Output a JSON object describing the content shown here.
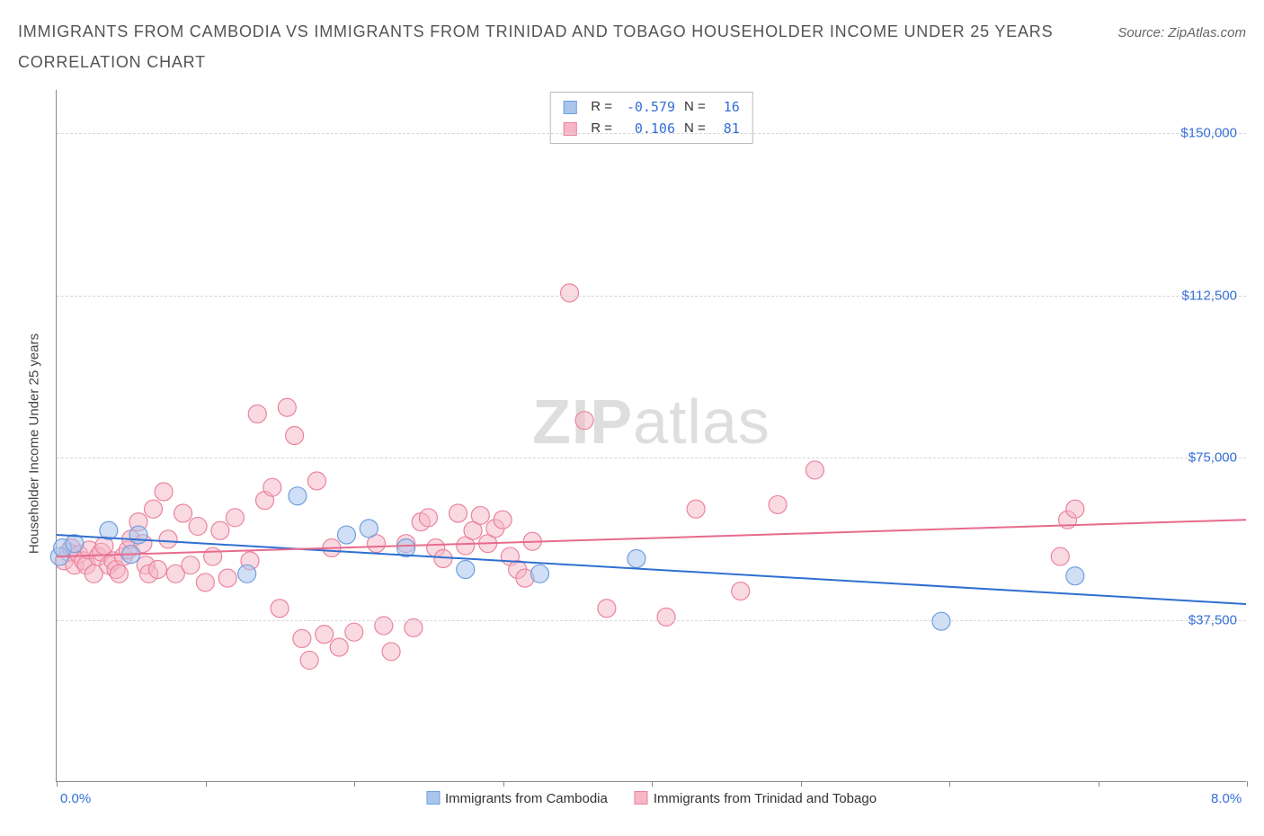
{
  "title_line1": "Immigrants from Cambodia vs Immigrants from Trinidad and Tobago Householder Income Under 25 years",
  "title_line2": "Correlation Chart",
  "source_prefix": "Source: ",
  "source_name": "ZipAtlas.com",
  "y_axis_label": "Householder Income Under 25 years",
  "watermark_bold": "ZIP",
  "watermark_light": "atlas",
  "chart": {
    "type": "scatter",
    "xlim": [
      0,
      8
    ],
    "ylim": [
      0,
      160000
    ],
    "x_ticks": [
      0,
      1,
      2,
      3,
      4,
      5,
      6,
      7,
      8
    ],
    "x_tick_labels": {
      "0": "0.0%",
      "8": "8.0%"
    },
    "y_gridlines": [
      37500,
      75000,
      112500,
      150000
    ],
    "y_tick_labels": [
      "$37,500",
      "$75,000",
      "$112,500",
      "$150,000"
    ],
    "background_color": "#ffffff",
    "grid_color": "#d8d8d8",
    "axis_color": "#888888",
    "tick_label_color": "#356fd6",
    "series": [
      {
        "name": "Immigrants from Cambodia",
        "short": "cambodia",
        "fill": "#a9c5ec",
        "stroke": "#6e9fe0",
        "line_color": "#2f6fd0",
        "fill_opacity": 0.55,
        "marker_r": 10,
        "R": "-0.579",
        "N": "16",
        "trend": {
          "x1": 0,
          "y1": 57000,
          "x2": 8,
          "y2": 41000
        },
        "points": [
          [
            0.02,
            52000
          ],
          [
            0.04,
            54000
          ],
          [
            0.12,
            55000
          ],
          [
            0.35,
            58000
          ],
          [
            0.5,
            52500
          ],
          [
            0.55,
            57000
          ],
          [
            1.28,
            48000
          ],
          [
            1.62,
            66000
          ],
          [
            1.95,
            57000
          ],
          [
            2.1,
            58500
          ],
          [
            2.35,
            54000
          ],
          [
            2.75,
            49000
          ],
          [
            3.25,
            48000
          ],
          [
            3.9,
            51500
          ],
          [
            5.95,
            37000
          ],
          [
            6.85,
            47500
          ]
        ]
      },
      {
        "name": "Immigrants from Trinidad and Tobago",
        "short": "trinidad",
        "fill": "#f6b6c6",
        "stroke": "#ea839e",
        "line_color": "#e76b8c",
        "fill_opacity": 0.5,
        "marker_r": 10,
        "R": "0.106",
        "N": "81",
        "trend": {
          "x1": 0,
          "y1": 52000,
          "x2": 8,
          "y2": 60500
        },
        "points": [
          [
            0.05,
            51000
          ],
          [
            0.08,
            53000
          ],
          [
            0.1,
            54000
          ],
          [
            0.12,
            50000
          ],
          [
            0.15,
            52500
          ],
          [
            0.18,
            51000
          ],
          [
            0.2,
            50000
          ],
          [
            0.22,
            53500
          ],
          [
            0.25,
            48000
          ],
          [
            0.28,
            52000
          ],
          [
            0.3,
            53000
          ],
          [
            0.32,
            54500
          ],
          [
            0.35,
            50000
          ],
          [
            0.38,
            51000
          ],
          [
            0.4,
            49000
          ],
          [
            0.42,
            48000
          ],
          [
            0.45,
            52000
          ],
          [
            0.48,
            53500
          ],
          [
            0.5,
            56000
          ],
          [
            0.55,
            60000
          ],
          [
            0.58,
            55000
          ],
          [
            0.6,
            50000
          ],
          [
            0.62,
            48000
          ],
          [
            0.65,
            63000
          ],
          [
            0.68,
            49000
          ],
          [
            0.72,
            67000
          ],
          [
            0.75,
            56000
          ],
          [
            0.8,
            48000
          ],
          [
            0.85,
            62000
          ],
          [
            0.9,
            50000
          ],
          [
            0.95,
            59000
          ],
          [
            1.0,
            46000
          ],
          [
            1.05,
            52000
          ],
          [
            1.1,
            58000
          ],
          [
            1.15,
            47000
          ],
          [
            1.2,
            61000
          ],
          [
            1.3,
            51000
          ],
          [
            1.35,
            85000
          ],
          [
            1.4,
            65000
          ],
          [
            1.45,
            68000
          ],
          [
            1.5,
            40000
          ],
          [
            1.55,
            86500
          ],
          [
            1.6,
            80000
          ],
          [
            1.65,
            33000
          ],
          [
            1.7,
            28000
          ],
          [
            1.75,
            69500
          ],
          [
            1.8,
            34000
          ],
          [
            1.85,
            54000
          ],
          [
            1.9,
            31000
          ],
          [
            2.0,
            34500
          ],
          [
            2.15,
            55000
          ],
          [
            2.2,
            36000
          ],
          [
            2.25,
            30000
          ],
          [
            2.35,
            55000
          ],
          [
            2.4,
            35500
          ],
          [
            2.45,
            60000
          ],
          [
            2.5,
            61000
          ],
          [
            2.55,
            54000
          ],
          [
            2.6,
            51500
          ],
          [
            2.7,
            62000
          ],
          [
            2.75,
            54500
          ],
          [
            2.8,
            58000
          ],
          [
            2.85,
            61500
          ],
          [
            2.9,
            55000
          ],
          [
            2.95,
            58500
          ],
          [
            3.0,
            60500
          ],
          [
            3.05,
            52000
          ],
          [
            3.1,
            49000
          ],
          [
            3.15,
            47000
          ],
          [
            3.2,
            55500
          ],
          [
            3.45,
            113000
          ],
          [
            3.55,
            83500
          ],
          [
            3.7,
            40000
          ],
          [
            4.1,
            38000
          ],
          [
            4.3,
            63000
          ],
          [
            4.6,
            44000
          ],
          [
            4.85,
            64000
          ],
          [
            5.1,
            72000
          ],
          [
            6.75,
            52000
          ],
          [
            6.8,
            60500
          ],
          [
            6.85,
            63000
          ]
        ]
      }
    ]
  },
  "legend": {
    "series1_label": "Immigrants from Cambodia",
    "series2_label": "Immigrants from Trinidad and Tobago",
    "r_label": "R =",
    "n_label": "N ="
  }
}
